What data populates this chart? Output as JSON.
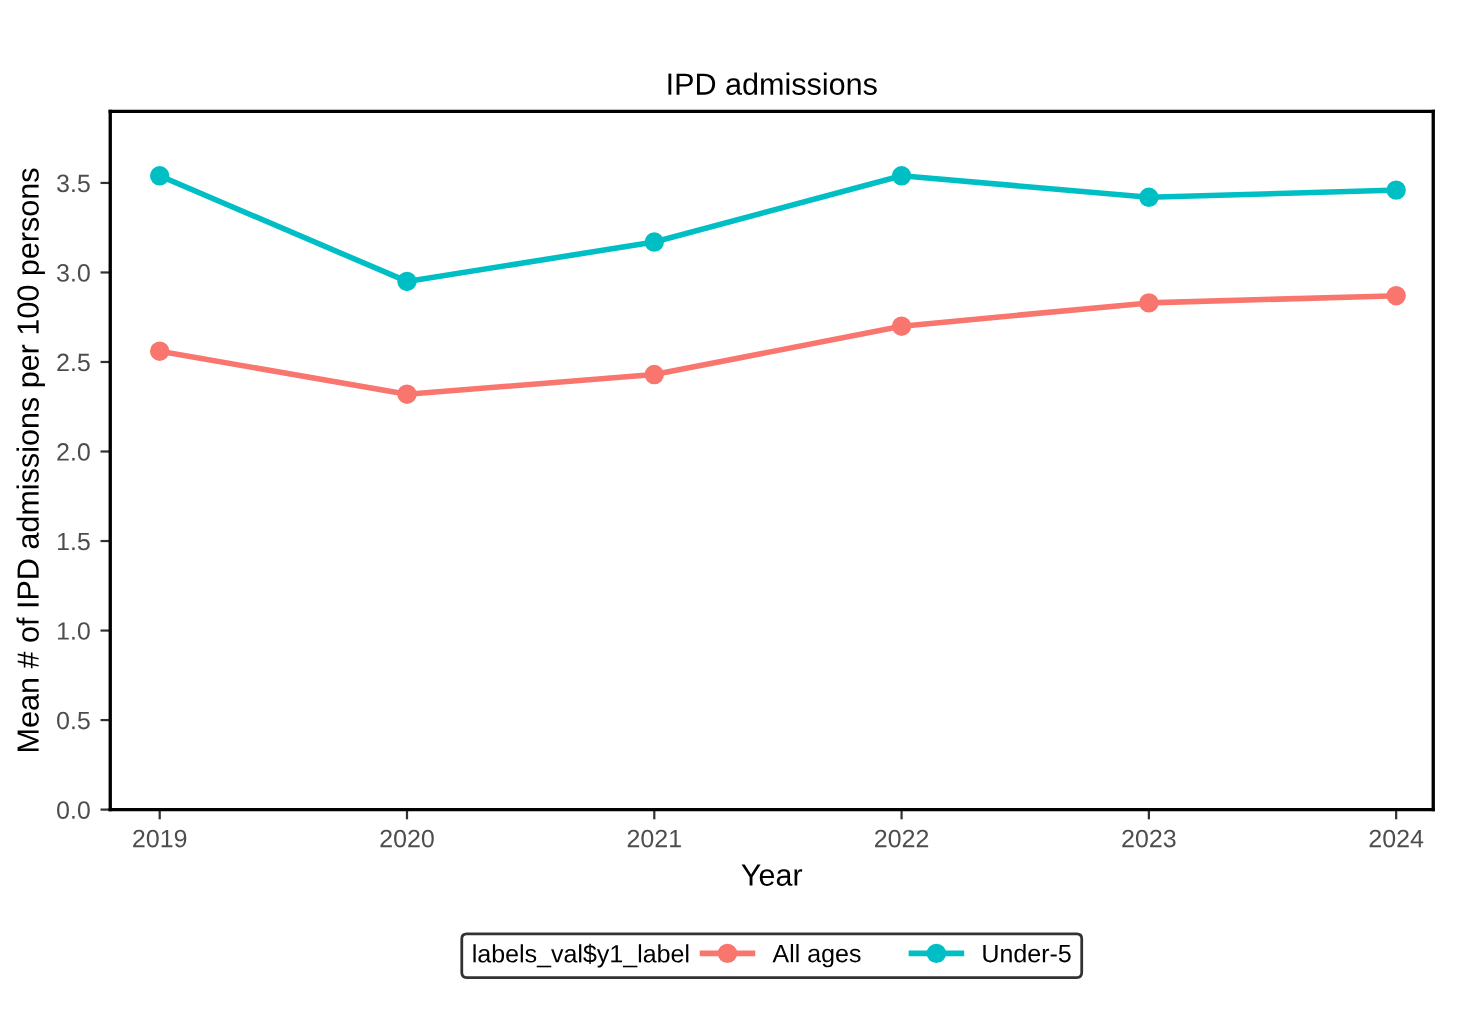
{
  "chart_data": {
    "type": "line",
    "title": "IPD admissions",
    "xlabel": "Year",
    "ylabel": "Mean # of IPD admissions per 100 persons",
    "legend_title": "labels_val$y1_label",
    "x": [
      2019,
      2020,
      2021,
      2022,
      2023,
      2024
    ],
    "series": [
      {
        "name": "All ages",
        "color": "#f8766d",
        "values": [
          2.56,
          2.32,
          2.43,
          2.7,
          2.83,
          2.87
        ]
      },
      {
        "name": "Under-5",
        "color": "#00bfc4",
        "values": [
          3.54,
          2.95,
          3.17,
          3.54,
          3.42,
          3.46
        ]
      }
    ],
    "xlim": [
      2018.8,
      2024.15
    ],
    "xticks": [
      2019,
      2020,
      2021,
      2022,
      2023,
      2024
    ],
    "ylim": [
      0,
      3.9
    ],
    "yticks": [
      {
        "value": 0,
        "label": "0.0"
      },
      {
        "value": 0.5,
        "label": "0.5"
      },
      {
        "value": 1,
        "label": "1.0"
      },
      {
        "value": 1.5,
        "label": "1.5"
      },
      {
        "value": 2,
        "label": "2.0"
      },
      {
        "value": 2.5,
        "label": "2.5"
      },
      {
        "value": 3,
        "label": "3.0"
      },
      {
        "value": 3.5,
        "label": "3.5"
      }
    ],
    "grid": false,
    "legend": "bottom",
    "marker": "circle",
    "line_style": "solid"
  }
}
